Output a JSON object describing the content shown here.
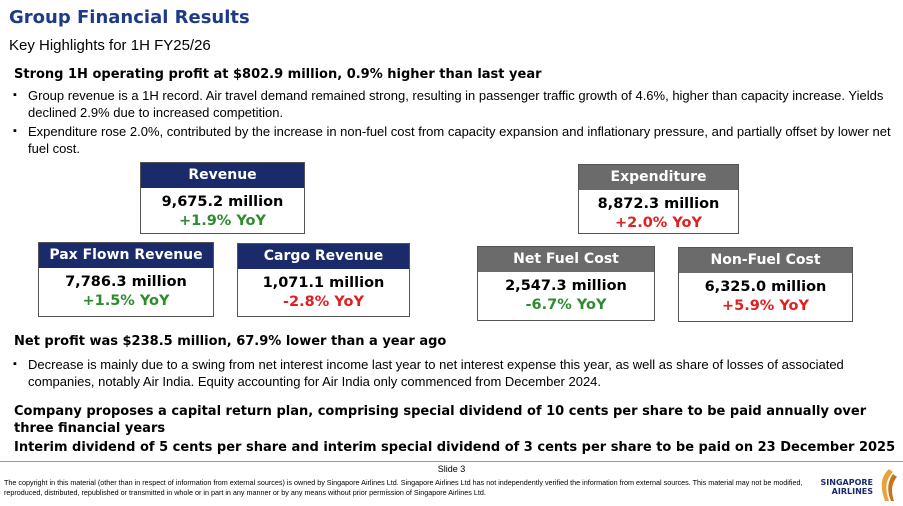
{
  "title": "Group Financial Results",
  "subtitle": "Key Highlights for 1H FY25/26",
  "section1": {
    "heading": "Strong 1H operating profit at $802.9 million, 0.9% higher than last year",
    "bullets": [
      "Group revenue is a 1H record. Air travel demand remained strong, resulting in passenger traffic growth of 4.6%, higher than capacity increase. Yields declined 2.9% due to increased competition.",
      "Expenditure rose 2.0%, contributed by the increase in non-fuel cost from capacity expansion and inflationary pressure, and partially offset by lower net fuel cost."
    ]
  },
  "boxes": {
    "revenue": {
      "label": "Revenue",
      "value": "9,675.2 million",
      "change": "+1.9% YoY"
    },
    "pax": {
      "label": "Pax Flown Revenue",
      "value": "7,786.3 million",
      "change": "+1.5% YoY"
    },
    "cargo": {
      "label": "Cargo Revenue",
      "value": "1,071.1 million",
      "change": "-2.8% YoY"
    },
    "expenditure": {
      "label": "Expenditure",
      "value": "8,872.3 million",
      "change": "+2.0% YoY"
    },
    "fuel": {
      "label": "Net Fuel Cost",
      "value": "2,547.3 million",
      "change": "-6.7% YoY"
    },
    "nonfuel": {
      "label": "Non-Fuel Cost",
      "value": "6,325.0 million",
      "change": "+5.9% YoY"
    }
  },
  "section2": {
    "heading": "Net profit was $238.5 million, 67.9% lower than a year ago",
    "bullets": [
      "Decrease is mainly due to a swing from net interest income last year to net interest expense this year, as well as share of losses of associated companies, notably Air India. Equity accounting for Air India only commenced from December 2024."
    ]
  },
  "capital": "Company proposes a capital return plan, comprising special dividend of 10 cents per share to be paid annually over three financial years",
  "interim": "Interim dividend of 5 cents per share and interim special dividend of 3 cents per share to be paid on 23 December 2025",
  "footer": {
    "slide": "Slide 3",
    "copyright": "The copyright in this material (other than in respect of information from external sources) is owned by Singapore Airlines Ltd. Singapore Airlines Ltd has not independently verified the information from external sources. This material may not be modified, reproduced, distributed, republished or transmitted in whole or in part in any manner or by any means without prior permission of Singapore Airlines Ltd.",
    "logo_line1": "SINGAPORE",
    "logo_line2": "AIRLINES"
  },
  "colors": {
    "navy": "#1b2a6b",
    "gray": "#6b6b6b",
    "positive": "#2e8b2e",
    "negative": "#e02020",
    "title": "#1f3b86"
  }
}
